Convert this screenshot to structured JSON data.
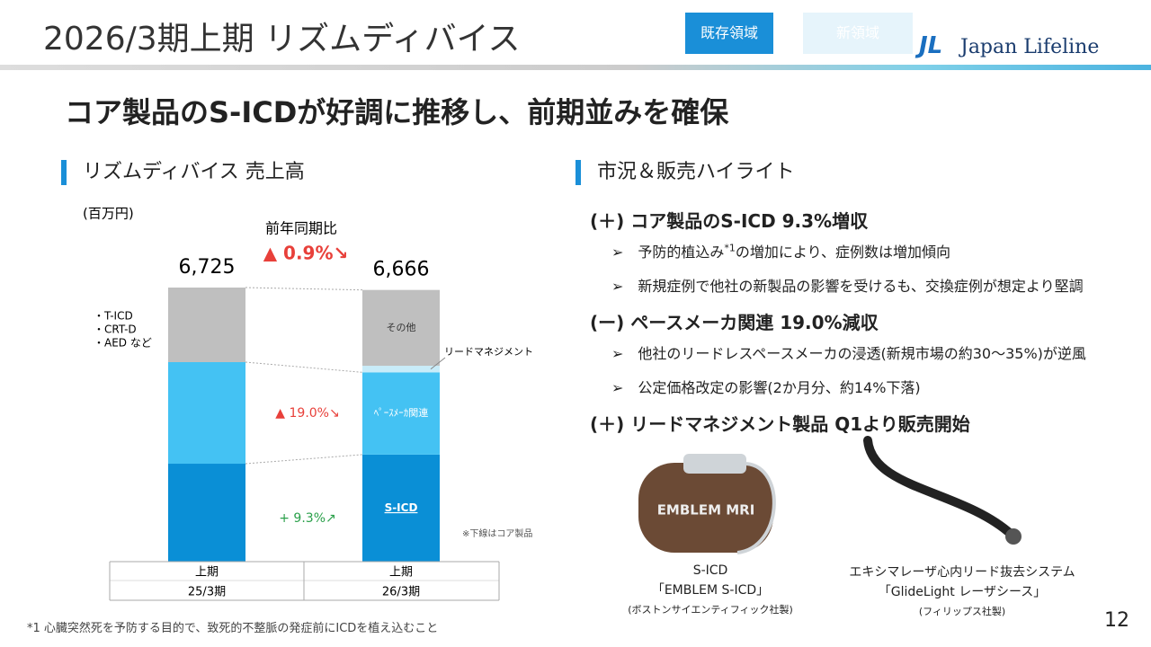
{
  "header": {
    "title": "2026/3期上期 リズムディバイス",
    "tabs": [
      "既存領域",
      "新領域"
    ],
    "logo_mark": "JL",
    "logo_text": "Japan Lifeline"
  },
  "headline": "コア製品のS-ICDが好調に推移し、前期並みを確保",
  "left_section": "リズムディバイス 売上高",
  "right_section": "市況＆販売ハイライト",
  "chart_data": {
    "type": "stacked-bar",
    "unit": "(百万円)",
    "categories": [
      "上期",
      "上期"
    ],
    "periods": [
      "25/3期",
      "26/3期"
    ],
    "series": [
      {
        "name": "S-ICD",
        "color": "#0a8fd6",
        "values": [
          2403,
          2626
        ]
      },
      {
        "name": "ﾍﾟｰｽﾒｰｶ関連",
        "color": "#44c2f3",
        "values": [
          2492,
          2019
        ]
      },
      {
        "name": "リードマネジメント",
        "color": "#c8ecf9",
        "values": [
          0,
          160
        ]
      },
      {
        "name": "その他",
        "color": "#bfbfbf",
        "values": [
          1830,
          1861
        ]
      }
    ],
    "totals": [
      6725,
      6666
    ],
    "total_labels": [
      "6,725",
      "6,666"
    ],
    "yoy_title": "前年同期比",
    "yoy_total": "▲ 0.9%↘",
    "yoy_segments": [
      "+ 9.3%↗",
      "▲ 19.0%↘"
    ],
    "other_items": [
      "・T-ICD",
      "・CRT-D",
      "・AED など"
    ],
    "note": "※下線はコア製品"
  },
  "highlights": [
    {
      "heading": "(＋) コア製品のS-ICD 9.3%増収",
      "items": [
        [
          "予防的植込み",
          "*1",
          "の増加により、症例数は増加傾向"
        ],
        [
          "新規症例で他社の新製品の影響を受けるも、交換症例が想定より堅調"
        ]
      ]
    },
    {
      "heading": "(ー) ペースメーカ関連 19.0%減収",
      "items": [
        [
          "他社のリードレスペースメーカの浸透(新規市場の約30～35%)が逆風"
        ],
        [
          "公定価格改定の影響(2か月分、約14%下落)"
        ]
      ]
    },
    {
      "heading": "(＋) リードマネジメント製品 Q1より販売開始",
      "items": []
    }
  ],
  "products": [
    {
      "name": "S-ICD",
      "product": "「EMBLEM S-ICD」",
      "maker": "(ボストンサイエンティフィック社製)"
    },
    {
      "name": "エキシマレーザ心内リード抜去システム",
      "product": "「GlideLight レーザシース」",
      "maker": "(フィリップス社製)"
    }
  ],
  "footnote": "*1 心臓突然死を予防する目的で、致死的不整脈の発症前にICDを植え込むこと",
  "page_number": "12"
}
